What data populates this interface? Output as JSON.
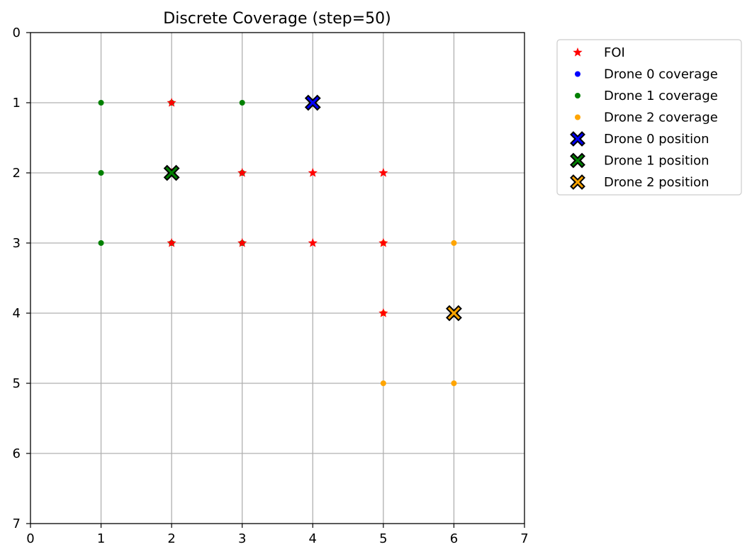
{
  "chart_data": {
    "type": "scatter",
    "title": "Discrete Coverage (step=50)",
    "xlabel": "",
    "ylabel": "",
    "xlim": [
      0,
      7
    ],
    "ylim": [
      7,
      0
    ],
    "y_inverted": true,
    "grid": true,
    "legend_placement": "outside-top-right",
    "xticks": [
      "0",
      "1",
      "2",
      "3",
      "4",
      "5",
      "6",
      "7"
    ],
    "yticks": [
      "0",
      "1",
      "2",
      "3",
      "4",
      "5",
      "6",
      "7"
    ],
    "series": [
      {
        "name": "Drone 1 coverage",
        "marker": "dot",
        "color": "#008000",
        "points": [
          [
            1,
            1
          ],
          [
            2,
            1
          ],
          [
            3,
            1
          ],
          [
            1,
            2
          ],
          [
            2,
            2
          ],
          [
            3,
            2
          ],
          [
            1,
            3
          ],
          [
            2,
            3
          ],
          [
            3,
            3
          ]
        ]
      },
      {
        "name": "Drone 2 coverage",
        "marker": "dot",
        "color": "#ffa500",
        "points": [
          [
            5,
            3
          ],
          [
            6,
            3
          ],
          [
            5,
            4
          ],
          [
            6,
            4
          ],
          [
            5,
            5
          ],
          [
            6,
            5
          ]
        ]
      },
      {
        "name": "FOI",
        "marker": "star",
        "color": "#ff0000",
        "points": [
          [
            2,
            1
          ],
          [
            2,
            2
          ],
          [
            3,
            2
          ],
          [
            4,
            2
          ],
          [
            5,
            2
          ],
          [
            2,
            3
          ],
          [
            3,
            3
          ],
          [
            4,
            3
          ],
          [
            5,
            3
          ],
          [
            5,
            4
          ]
        ]
      },
      {
        "name": "Drone 0 coverage",
        "marker": "dot",
        "color": "#0000ff",
        "points": [
          [
            4,
            1
          ]
        ]
      },
      {
        "name": "Drone 0 position",
        "marker": "x-filled",
        "color": "#0000ff",
        "points": [
          [
            4,
            1
          ]
        ]
      },
      {
        "name": "Drone 1 position",
        "marker": "x-filled",
        "color": "#008000",
        "points": [
          [
            2,
            2
          ]
        ]
      },
      {
        "name": "Drone 2 position",
        "marker": "x-filled",
        "color": "#ffa500",
        "points": [
          [
            6,
            4
          ]
        ]
      }
    ],
    "legend": [
      {
        "label": "FOI",
        "marker": "star",
        "color": "#ff0000"
      },
      {
        "label": "Drone 0 coverage",
        "marker": "dot",
        "color": "#0000ff"
      },
      {
        "label": "Drone 1 coverage",
        "marker": "dot",
        "color": "#008000"
      },
      {
        "label": "Drone 2 coverage",
        "marker": "dot",
        "color": "#ffa500"
      },
      {
        "label": "Drone 0 position",
        "marker": "x-filled",
        "color": "#0000ff"
      },
      {
        "label": "Drone 1 position",
        "marker": "x-filled",
        "color": "#008000"
      },
      {
        "label": "Drone 2 position",
        "marker": "x-filled",
        "color": "#ffa500"
      }
    ]
  }
}
